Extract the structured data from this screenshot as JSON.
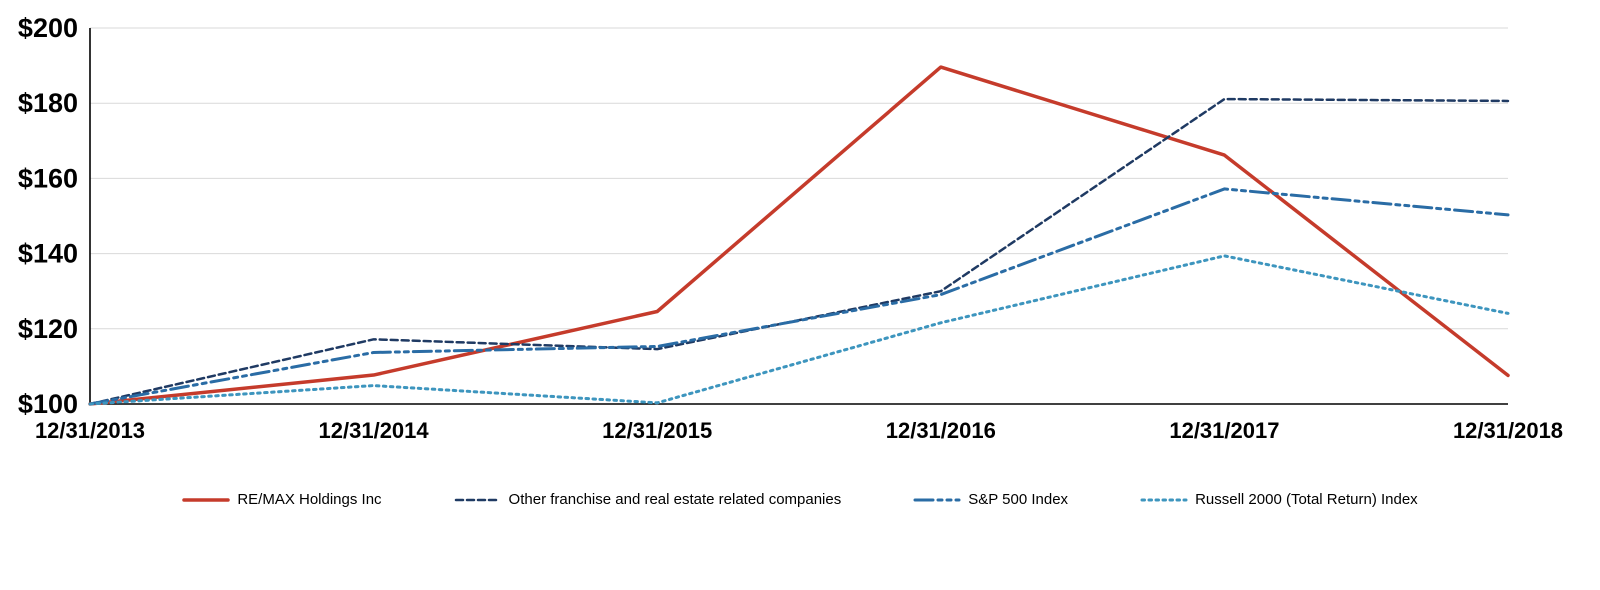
{
  "chart_data": {
    "type": "line",
    "title": "",
    "x": [
      "12/31/2013",
      "12/31/2014",
      "12/31/2015",
      "12/31/2016",
      "12/31/2017",
      "12/31/2018"
    ],
    "series": [
      {
        "name": "RE/MAX Holdings Inc",
        "values": [
          100,
          107.7,
          124.6,
          189.6,
          166.2,
          107.6
        ],
        "color": "#C53B2B",
        "dash": "",
        "width": 3.5
      },
      {
        "name": "Other franchise and real estate related companies",
        "values": [
          100,
          117.2,
          114.6,
          130.0,
          181.1,
          180.6
        ],
        "color": "#1F3A63",
        "dash": "7 4",
        "width": 2.5
      },
      {
        "name": "S&P 500 Index",
        "values": [
          100,
          113.7,
          115.3,
          129.1,
          157.2,
          150.3
        ],
        "color": "#2A6CA5",
        "dash": "18 5 4 5 4 5",
        "width": 3
      },
      {
        "name": "Russell 2000 (Total Return) Index",
        "values": [
          100,
          104.9,
          100.3,
          121.6,
          139.4,
          124.1
        ],
        "color": "#3D95BE",
        "dash": "2.5 4.5",
        "width": 3
      }
    ],
    "ylim": [
      100,
      200
    ],
    "yticks": [
      100,
      120,
      140,
      160,
      180,
      200
    ],
    "ytick_prefix": "$",
    "xlabel": "",
    "ylabel": "",
    "grid": true,
    "gridline_color": "#D9D9D9",
    "axis_color": "#000000",
    "legend_position": "bottom"
  }
}
